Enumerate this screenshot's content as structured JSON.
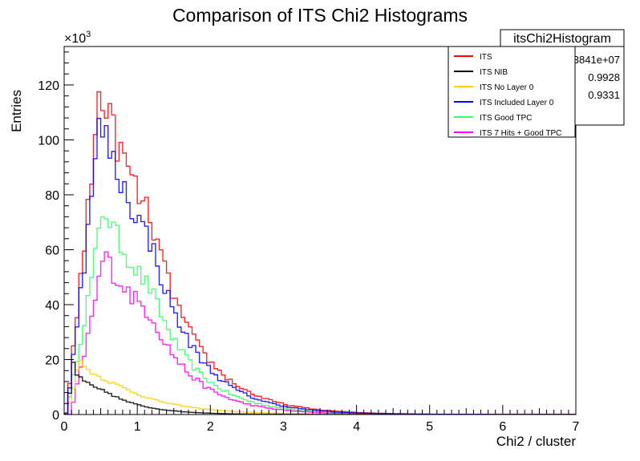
{
  "chart_data": {
    "type": "line",
    "title": "Comparison of ITS Chi2 Histograms",
    "xlabel": "Chi2 / cluster",
    "ylabel": "Entries",
    "y_multiplier": "×10",
    "y_multiplier_exp": "3",
    "xlim": [
      0,
      7
    ],
    "ylim": [
      0,
      134
    ],
    "x_ticks": [
      0,
      1,
      2,
      3,
      4,
      5,
      6,
      7
    ],
    "y_ticks": [
      0,
      20,
      40,
      60,
      80,
      100,
      120
    ],
    "grid": false,
    "legend_position": "top-right",
    "bin_width": 0.05,
    "series": [
      {
        "name": "ITS",
        "color": "#ff0000",
        "shape": {
          "type": "peak",
          "rise": [
            0.05,
            3.0,
            1.6
          ],
          "peak_x": 0.5,
          "peak_y": 122,
          "decay": 0.72,
          "tail_start": 1.2,
          "tail_start_y": 70,
          "decay2": 0.62,
          "noise": 0.07
        }
      },
      {
        "name": "ITS NIB",
        "color": "#000000",
        "shape": {
          "type": "peak",
          "rise": [
            0.02,
            12.0,
            1.0
          ],
          "peak_x": 0.13,
          "peak_y": 20,
          "decay": 0.35,
          "tail_start": 0.6,
          "tail_start_y": 8,
          "decay2": 0.5,
          "noise": 0.05
        }
      },
      {
        "name": "ITS No Layer 0",
        "color": "#ffcc00",
        "shape": {
          "type": "peak",
          "rise": [
            0.02,
            10.0,
            1.0
          ],
          "peak_x": 0.2,
          "peak_y": 21,
          "decay": 0.55,
          "tail_start": 0.8,
          "tail_start_y": 10,
          "decay2": 0.7,
          "noise": 0.05
        }
      },
      {
        "name": "ITS Included Layer 0",
        "color": "#0000ff",
        "shape": {
          "type": "peak",
          "rise": [
            0.05,
            3.0,
            1.6
          ],
          "peak_x": 0.5,
          "peak_y": 110,
          "decay": 0.7,
          "tail_start": 1.2,
          "tail_start_y": 62,
          "decay2": 0.6,
          "noise": 0.07
        }
      },
      {
        "name": "ITS Good TPC",
        "color": "#33ff66",
        "shape": {
          "type": "peak",
          "rise": [
            0.05,
            2.5,
            1.5
          ],
          "peak_x": 0.55,
          "peak_y": 78,
          "decay": 0.68,
          "tail_start": 1.2,
          "tail_start_y": 45,
          "decay2": 0.6,
          "noise": 0.07
        }
      },
      {
        "name": "ITS 7 Hits + Good TPC",
        "color": "#ff00ff",
        "shape": {
          "type": "peak",
          "rise": [
            0.1,
            2.0,
            1.4
          ],
          "peak_x": 0.55,
          "peak_y": 60,
          "decay": 0.66,
          "tail_start": 1.2,
          "tail_start_y": 36,
          "decay2": 0.58,
          "noise": 0.08
        }
      }
    ],
    "stats_box": {
      "title": "itsChi2Histogram",
      "rows": [
        "3841e+07",
        "0.9928",
        "0.9331"
      ]
    }
  }
}
